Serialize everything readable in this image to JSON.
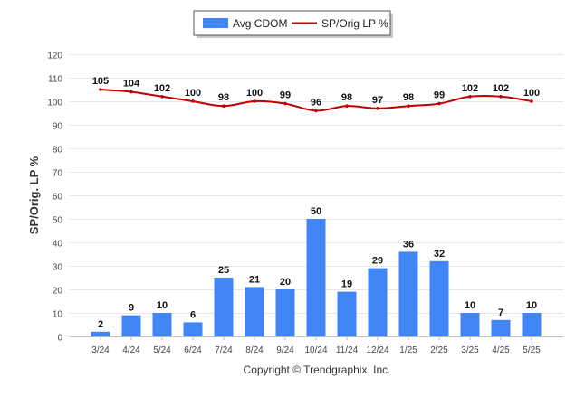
{
  "chart_data": {
    "type": "bar",
    "categories": [
      "3/24",
      "4/24",
      "5/24",
      "6/24",
      "7/24",
      "8/24",
      "9/24",
      "10/24",
      "11/24",
      "12/24",
      "1/25",
      "2/25",
      "3/25",
      "4/25",
      "5/25"
    ],
    "series": [
      {
        "name": "Avg CDOM",
        "type": "bar",
        "color": "#4285f4",
        "values": [
          2,
          9,
          10,
          6,
          25,
          21,
          20,
          50,
          19,
          29,
          36,
          32,
          10,
          7,
          10
        ]
      },
      {
        "name": "SP/Orig LP %",
        "type": "line",
        "color": "#c00000",
        "values": [
          105,
          104,
          102,
          100,
          98,
          100,
          99,
          96,
          98,
          97,
          98,
          99,
          102,
          102,
          100
        ]
      }
    ],
    "ylabel": "SP/Orig. LP %",
    "xlabel": "",
    "ylim": [
      0,
      120
    ],
    "yticks": [
      0,
      10,
      20,
      30,
      40,
      50,
      60,
      70,
      80,
      90,
      100,
      110,
      120
    ],
    "grid": true,
    "legend_position": "top-center",
    "footer": "Copyright © Trendgraphix, Inc."
  }
}
